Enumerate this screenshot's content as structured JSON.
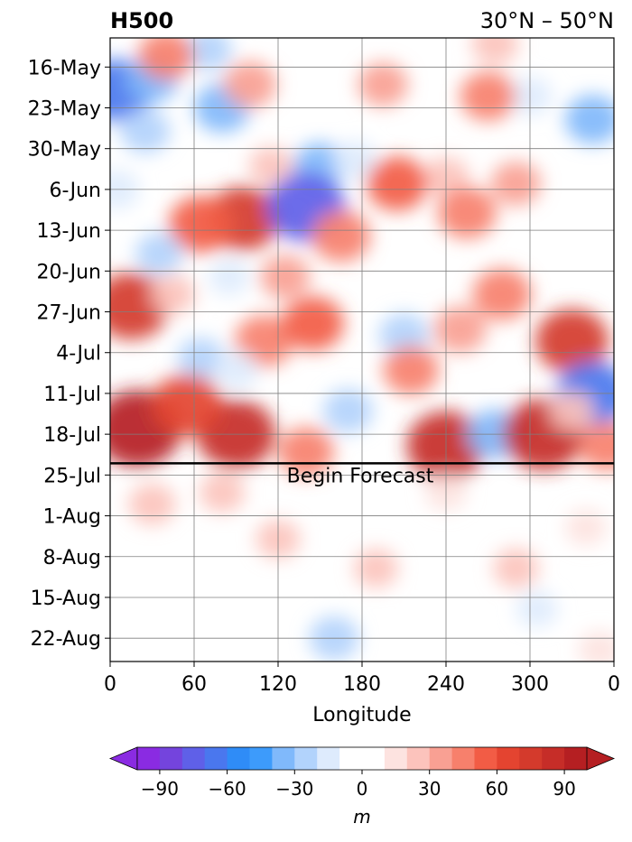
{
  "chart_data": {
    "type": "heatmap",
    "title_left": "H500",
    "title_right": "30°N – 50°N",
    "xlabel": "Longitude",
    "x_ticks": [
      "0",
      "60",
      "120",
      "180",
      "240",
      "300",
      "0"
    ],
    "x_tick_values": [
      0,
      60,
      120,
      180,
      240,
      300,
      360
    ],
    "xlim": [
      0,
      360
    ],
    "y_ticks": [
      "16-May",
      "23-May",
      "30-May",
      "6-Jun",
      "13-Jun",
      "20-Jun",
      "27-Jun",
      "4-Jul",
      "11-Jul",
      "18-Jul",
      "25-Jul",
      "1-Aug",
      "8-Aug",
      "15-Aug",
      "22-Aug"
    ],
    "y_range": [
      "2023-05-11",
      "2023-08-26"
    ],
    "forecast_start": "2023-07-23",
    "annotation": "Begin Forecast",
    "grid": true,
    "colorbar": {
      "label": "m",
      "ticks": [
        "−90",
        "−60",
        "−30",
        "0",
        "30",
        "60",
        "90"
      ],
      "tick_values": [
        -90,
        -60,
        -30,
        0,
        30,
        60,
        90
      ],
      "levels": [
        -100,
        -90,
        -80,
        -70,
        -60,
        -50,
        -40,
        -30,
        -20,
        -10,
        10,
        20,
        30,
        40,
        50,
        60,
        70,
        80,
        90,
        100
      ],
      "colors": [
        "#8a2be2",
        "#7444dd",
        "#5f60e8",
        "#4a77ee",
        "#2f8cf7",
        "#3d9bfb",
        "#80b9fb",
        "#b2d3fc",
        "#deebfd",
        "#ffffff",
        "#fde3e0",
        "#fcc3bc",
        "#f9a093",
        "#f7806c",
        "#f25c45",
        "#e44430",
        "#d43a2c",
        "#c62d28",
        "#b51f22"
      ],
      "extend": "both"
    },
    "anomalies": [
      {
        "lon": 5,
        "date": "2023-05-20",
        "value": -65
      },
      {
        "lon": 30,
        "date": "2023-05-18",
        "value": -35
      },
      {
        "lon": 25,
        "date": "2023-05-27",
        "value": -30
      },
      {
        "lon": 70,
        "date": "2023-05-13",
        "value": -25
      },
      {
        "lon": 80,
        "date": "2023-05-23",
        "value": -40
      },
      {
        "lon": 150,
        "date": "2023-06-02",
        "value": -35
      },
      {
        "lon": 195,
        "date": "2023-05-19",
        "value": 30
      },
      {
        "lon": 275,
        "date": "2023-05-12",
        "value": 25
      },
      {
        "lon": 300,
        "date": "2023-05-21",
        "value": -20
      },
      {
        "lon": 345,
        "date": "2023-05-25",
        "value": -40
      },
      {
        "lon": 40,
        "date": "2023-05-14",
        "value": 40
      },
      {
        "lon": 100,
        "date": "2023-05-19",
        "value": 35
      },
      {
        "lon": 5,
        "date": "2023-06-06",
        "value": -20
      },
      {
        "lon": 175,
        "date": "2023-06-01",
        "value": -20
      },
      {
        "lon": 115,
        "date": "2023-06-02",
        "value": 20
      },
      {
        "lon": 240,
        "date": "2023-06-04",
        "value": 25
      },
      {
        "lon": 290,
        "date": "2023-06-05",
        "value": 30
      },
      {
        "lon": 270,
        "date": "2023-05-21",
        "value": 40
      },
      {
        "lon": 95,
        "date": "2023-06-11",
        "value": 70
      },
      {
        "lon": 65,
        "date": "2023-06-12",
        "value": 55
      },
      {
        "lon": 140,
        "date": "2023-06-09",
        "value": -80
      },
      {
        "lon": 165,
        "date": "2023-06-14",
        "value": 45
      },
      {
        "lon": 205,
        "date": "2023-06-05",
        "value": 50
      },
      {
        "lon": 255,
        "date": "2023-06-10",
        "value": 45
      },
      {
        "lon": 35,
        "date": "2023-06-17",
        "value": -25
      },
      {
        "lon": 85,
        "date": "2023-06-21",
        "value": -15
      },
      {
        "lon": 125,
        "date": "2023-06-21",
        "value": 30
      },
      {
        "lon": 280,
        "date": "2023-06-24",
        "value": 45
      },
      {
        "lon": 15,
        "date": "2023-06-26",
        "value": 75
      },
      {
        "lon": 45,
        "date": "2023-06-24",
        "value": 20
      },
      {
        "lon": 110,
        "date": "2023-07-02",
        "value": 45
      },
      {
        "lon": 145,
        "date": "2023-06-29",
        "value": 50
      },
      {
        "lon": 210,
        "date": "2023-07-01",
        "value": -30
      },
      {
        "lon": 250,
        "date": "2023-06-30",
        "value": 35
      },
      {
        "lon": 330,
        "date": "2023-07-02",
        "value": 70
      },
      {
        "lon": 65,
        "date": "2023-07-05",
        "value": -25
      },
      {
        "lon": 90,
        "date": "2023-07-07",
        "value": -20
      },
      {
        "lon": 20,
        "date": "2023-07-17",
        "value": 95
      },
      {
        "lon": 90,
        "date": "2023-07-18",
        "value": 80
      },
      {
        "lon": 55,
        "date": "2023-07-13",
        "value": 65
      },
      {
        "lon": 140,
        "date": "2023-07-21",
        "value": 40
      },
      {
        "lon": 240,
        "date": "2023-07-20",
        "value": 80
      },
      {
        "lon": 275,
        "date": "2023-07-18",
        "value": -40
      },
      {
        "lon": 310,
        "date": "2023-07-18",
        "value": 85
      },
      {
        "lon": 345,
        "date": "2023-07-11",
        "value": -70
      },
      {
        "lon": 355,
        "date": "2023-07-20",
        "value": 40
      },
      {
        "lon": 170,
        "date": "2023-07-14",
        "value": -30
      },
      {
        "lon": 215,
        "date": "2023-07-07",
        "value": 40
      },
      {
        "lon": 330,
        "date": "2023-07-14",
        "value": 20
      },
      {
        "lon": 30,
        "date": "2023-07-30",
        "value": 25
      },
      {
        "lon": 80,
        "date": "2023-07-28",
        "value": 22
      },
      {
        "lon": 120,
        "date": "2023-08-05",
        "value": 20
      },
      {
        "lon": 190,
        "date": "2023-08-10",
        "value": 20
      },
      {
        "lon": 240,
        "date": "2023-07-28",
        "value": 15
      },
      {
        "lon": 290,
        "date": "2023-08-10",
        "value": 22
      },
      {
        "lon": 350,
        "date": "2023-08-24",
        "value": 18
      },
      {
        "lon": 340,
        "date": "2023-08-03",
        "value": 15
      },
      {
        "lon": 160,
        "date": "2023-08-22",
        "value": -30
      },
      {
        "lon": 305,
        "date": "2023-08-17",
        "value": -15
      },
      {
        "lon": 230,
        "date": "2023-08-20",
        "value": -10
      },
      {
        "lon": 70,
        "date": "2023-08-15",
        "value": 5
      }
    ]
  }
}
